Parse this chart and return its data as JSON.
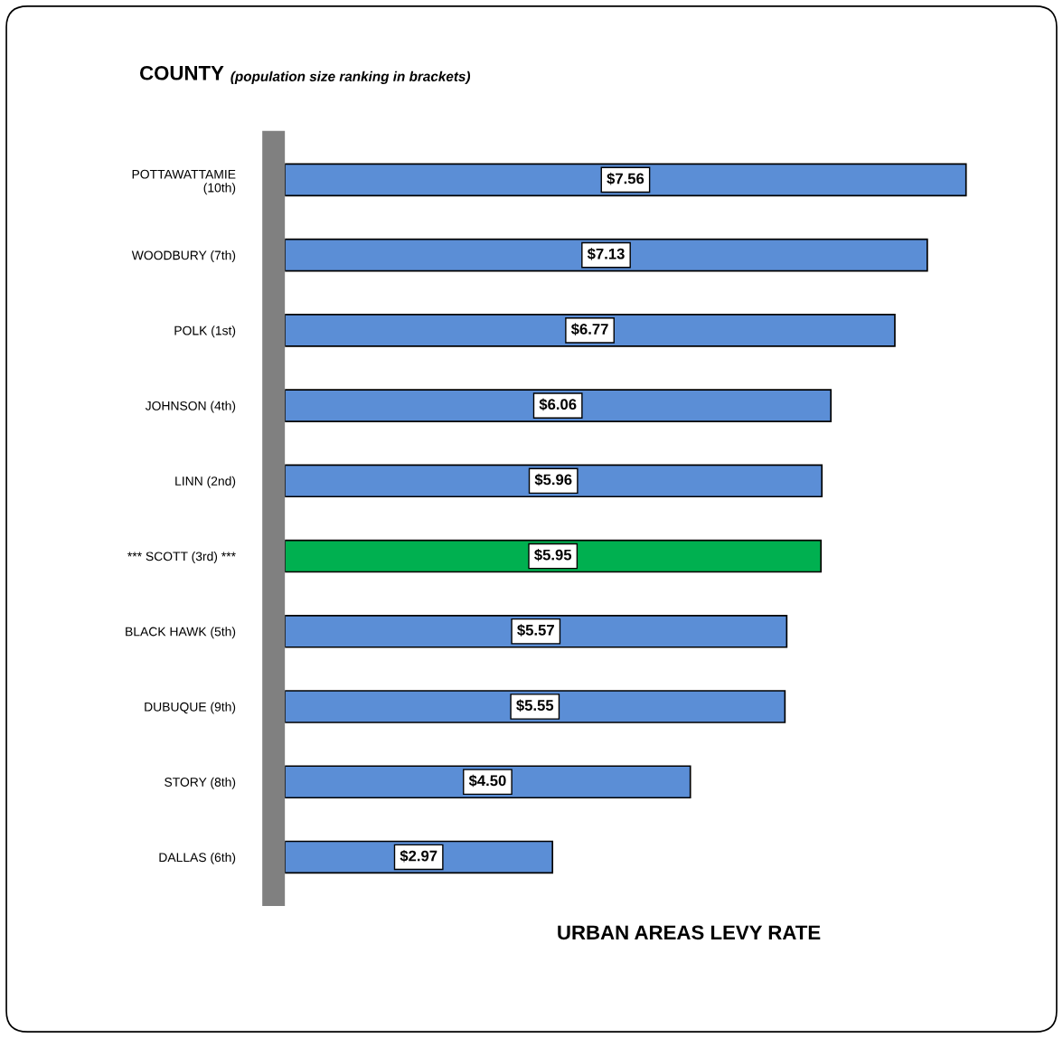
{
  "chart_data": {
    "type": "bar",
    "orientation": "horizontal",
    "title": "COUNTY",
    "subtitle": "(population size ranking in brackets)",
    "xlabel": "URBAN AREAS LEVY RATE",
    "categories": [
      "POTTAWATTAMIE\n(10th)",
      "WOODBURY (7th)",
      "POLK (1st)",
      "JOHNSON (4th)",
      "LINN (2nd)",
      "*** SCOTT (3rd) ***",
      "BLACK HAWK (5th)",
      "DUBUQUE (9th)",
      "STORY (8th)",
      "DALLAS (6th)"
    ],
    "values": [
      7.56,
      7.13,
      6.77,
      6.06,
      5.96,
      5.95,
      5.57,
      5.55,
      4.5,
      2.97
    ],
    "value_labels": [
      "$7.56",
      "$7.13",
      "$6.77",
      "$6.06",
      "$5.96",
      "$5.95",
      "$5.57",
      "$5.55",
      "$4.50",
      "$2.97"
    ],
    "colors": [
      "#5b8ed6",
      "#5b8ed6",
      "#5b8ed6",
      "#5b8ed6",
      "#5b8ed6",
      "#00b050",
      "#5b8ed6",
      "#5b8ed6",
      "#5b8ed6",
      "#5b8ed6"
    ],
    "tick_labels": "y",
    "grid": false,
    "legend": false
  }
}
